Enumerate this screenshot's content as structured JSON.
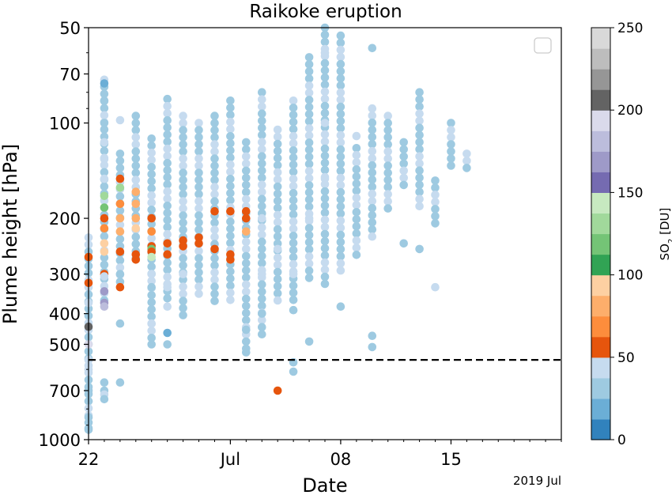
{
  "chart_data": {
    "type": "scatter",
    "title": "Raikoke eruption",
    "xlabel": "Date",
    "ylabel": "Plume height [hPa]",
    "x_offset_label": "2019 Jul",
    "x_axis": {
      "type": "date",
      "range": [
        "2019-06-22",
        "2019-07-22"
      ],
      "tick_dates": [
        "2019-06-22",
        "2019-07-01",
        "2019-07-08",
        "2019-07-15"
      ],
      "tick_labels": [
        "22",
        "Jul",
        "08",
        "15"
      ]
    },
    "y_axis": {
      "scale": "log",
      "inverted": true,
      "range": [
        1000,
        50
      ],
      "ticks": [
        50,
        70,
        100,
        200,
        300,
        400,
        500,
        700,
        1000
      ],
      "tick_labels": [
        "50",
        "70",
        "100",
        "200",
        "300",
        "400",
        "500",
        "700",
        "1000"
      ]
    },
    "reference_line": {
      "y": 560,
      "style": "dashed",
      "color": "#000000"
    },
    "legend": {
      "placement": "top-right",
      "entries": []
    },
    "colorbar": {
      "label": "SO2 [DU]",
      "label_main": "SO",
      "label_sub": "2",
      "label_unit": " [DU]",
      "range": [
        0,
        250
      ],
      "ticks": [
        0,
        50,
        100,
        150,
        200,
        250
      ],
      "tick_labels": [
        "0",
        "50",
        "100",
        "150",
        "200",
        "250"
      ],
      "bins": [
        "#3182bd",
        "#6baed6",
        "#9ecae1",
        "#c6dbef",
        "#e6550d",
        "#fd8d3c",
        "#fdae6b",
        "#fdd0a2",
        "#31a354",
        "#74c476",
        "#a1d99b",
        "#c7e9c0",
        "#756bb1",
        "#9e9ac8",
        "#bcbddc",
        "#dadaeb",
        "#636363",
        "#969696",
        "#bdbdbd",
        "#d9d9d9"
      ]
    },
    "columns": [
      {
        "date": "2019-06-22",
        "top": 230,
        "bottom": 950,
        "so2": 30,
        "extra": [
          [
            265,
            55
          ],
          [
            320,
            60
          ],
          [
            370,
            45
          ],
          [
            440,
            210
          ],
          [
            500,
            190
          ],
          [
            560,
            40
          ],
          [
            600,
            45
          ],
          [
            700,
            35
          ],
          [
            850,
            30
          ],
          [
            920,
            25
          ]
        ]
      },
      {
        "date": "2019-06-23",
        "top": 73,
        "bottom": 380,
        "so2": 30,
        "extra": [
          [
            75,
            20
          ],
          [
            85,
            35
          ],
          [
            100,
            30
          ],
          [
            115,
            40
          ],
          [
            130,
            45
          ],
          [
            150,
            45
          ],
          [
            170,
            130
          ],
          [
            185,
            120
          ],
          [
            200,
            55
          ],
          [
            215,
            65
          ],
          [
            240,
            90
          ],
          [
            255,
            95
          ],
          [
            300,
            50
          ],
          [
            305,
            45
          ],
          [
            340,
            170
          ],
          [
            370,
            165
          ],
          [
            380,
            175
          ],
          [
            660,
            30
          ],
          [
            700,
            30
          ],
          [
            720,
            40
          ],
          [
            745,
            35
          ]
        ]
      },
      {
        "date": "2019-06-24",
        "top": 125,
        "bottom": 330,
        "so2": 25,
        "extra": [
          [
            98,
            45
          ],
          [
            150,
            60
          ],
          [
            160,
            130
          ],
          [
            180,
            70
          ],
          [
            200,
            75
          ],
          [
            220,
            80
          ],
          [
            255,
            55
          ],
          [
            300,
            35
          ],
          [
            330,
            55
          ],
          [
            430,
            30
          ],
          [
            660,
            30
          ]
        ]
      },
      {
        "date": "2019-06-25",
        "top": 95,
        "bottom": 270,
        "so2": 25,
        "extra": [
          [
            165,
            85
          ],
          [
            180,
            75
          ],
          [
            200,
            80
          ],
          [
            215,
            90
          ],
          [
            260,
            55
          ],
          [
            270,
            60
          ]
        ]
      },
      {
        "date": "2019-06-26",
        "top": 112,
        "bottom": 500,
        "so2": 30,
        "extra": [
          [
            200,
            55
          ],
          [
            220,
            65
          ],
          [
            245,
            60
          ],
          [
            250,
            120
          ],
          [
            255,
            55
          ],
          [
            265,
            140
          ],
          [
            300,
            40
          ],
          [
            330,
            35
          ],
          [
            430,
            40
          ],
          [
            500,
            30
          ]
        ]
      },
      {
        "date": "2019-06-27",
        "top": 84,
        "bottom": 360,
        "so2": 25,
        "extra": [
          [
            240,
            55
          ],
          [
            260,
            60
          ],
          [
            330,
            40
          ],
          [
            380,
            45
          ],
          [
            460,
            20
          ],
          [
            500,
            25
          ]
        ]
      },
      {
        "date": "2019-06-28",
        "top": 95,
        "bottom": 410,
        "so2": 25,
        "extra": [
          [
            235,
            55
          ],
          [
            245,
            60
          ],
          [
            300,
            40
          ]
        ]
      },
      {
        "date": "2019-06-29",
        "top": 100,
        "bottom": 360,
        "so2": 25,
        "extra": [
          [
            230,
            55
          ],
          [
            240,
            60
          ]
        ]
      },
      {
        "date": "2019-06-30",
        "top": 95,
        "bottom": 380,
        "so2": 25,
        "extra": [
          [
            190,
            55
          ],
          [
            250,
            50
          ]
        ]
      },
      {
        "date": "2019-07-01",
        "top": 85,
        "bottom": 380,
        "so2": 25,
        "extra": [
          [
            190,
            55
          ],
          [
            260,
            55
          ],
          [
            270,
            60
          ]
        ]
      },
      {
        "date": "2019-07-02",
        "top": 115,
        "bottom": 540,
        "so2": 25,
        "extra": [
          [
            190,
            55
          ],
          [
            200,
            60
          ],
          [
            220,
            75
          ],
          [
            450,
            30
          ],
          [
            530,
            25
          ]
        ]
      },
      {
        "date": "2019-07-03",
        "top": 80,
        "bottom": 470,
        "so2": 25,
        "extra": [
          [
            200,
            40
          ],
          [
            300,
            45
          ],
          [
            400,
            30
          ]
        ]
      },
      {
        "date": "2019-07-04",
        "top": 105,
        "bottom": 380,
        "so2": 25,
        "extra": [
          [
            700,
            50
          ],
          [
            250,
            40
          ]
        ]
      },
      {
        "date": "2019-07-05",
        "top": 85,
        "bottom": 370,
        "so2": 25,
        "extra": [
          [
            390,
            30
          ],
          [
            570,
            30
          ],
          [
            610,
            25
          ],
          [
            300,
            40
          ]
        ]
      },
      {
        "date": "2019-07-06",
        "top": 62,
        "bottom": 320,
        "so2": 25,
        "extra": [
          [
            490,
            30
          ],
          [
            200,
            40
          ]
        ]
      },
      {
        "date": "2019-07-07",
        "top": 50,
        "bottom": 330,
        "so2": 25,
        "extra": [
          [
            60,
            40
          ],
          [
            100,
            45
          ],
          [
            150,
            45
          ]
        ]
      },
      {
        "date": "2019-07-08",
        "top": 53,
        "bottom": 300,
        "so2": 25,
        "extra": [
          [
            380,
            30
          ]
        ]
      },
      {
        "date": "2019-07-09",
        "top": 120,
        "bottom": 270,
        "so2": 25,
        "extra": [
          [
            110,
            40
          ]
        ]
      },
      {
        "date": "2019-07-10",
        "top": 90,
        "bottom": 230,
        "so2": 25,
        "extra": [
          [
            470,
            30
          ],
          [
            510,
            25
          ],
          [
            58,
            30
          ]
        ]
      },
      {
        "date": "2019-07-11",
        "top": 95,
        "bottom": 190,
        "so2": 25,
        "extra": []
      },
      {
        "date": "2019-07-12",
        "top": 115,
        "bottom": 165,
        "so2": 25,
        "extra": [
          [
            240,
            30
          ]
        ]
      },
      {
        "date": "2019-07-13",
        "top": 80,
        "bottom": 185,
        "so2": 25,
        "extra": [
          [
            250,
            30
          ]
        ]
      },
      {
        "date": "2019-07-14",
        "top": 152,
        "bottom": 210,
        "so2": 30,
        "extra": [
          [
            330,
            45
          ]
        ]
      },
      {
        "date": "2019-07-15",
        "top": 100,
        "bottom": 140,
        "so2": 25,
        "extra": []
      },
      {
        "date": "2019-07-16",
        "top": 125,
        "bottom": 145,
        "so2": 25,
        "extra": []
      }
    ]
  }
}
